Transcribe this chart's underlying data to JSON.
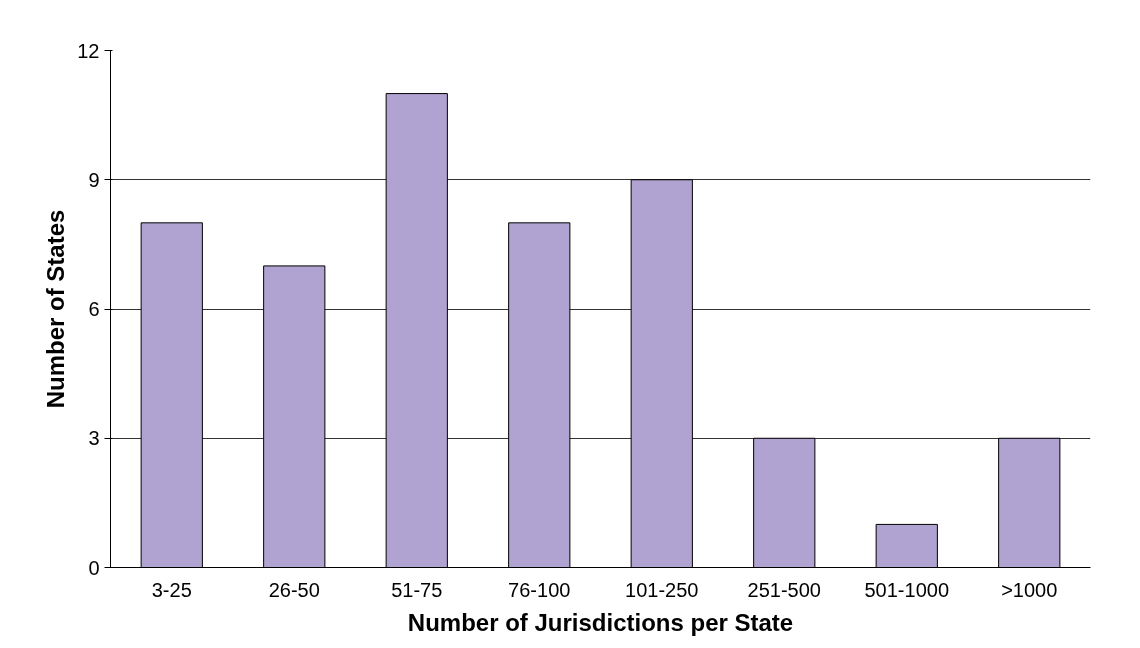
{
  "chart_data": {
    "type": "bar",
    "xlabel": "Number of Jurisdictions per State",
    "ylabel": "Number of States",
    "categories": [
      "3-25",
      "26-50",
      "51-75",
      "76-100",
      "101-250",
      "251-500",
      "501-1000",
      ">1000"
    ],
    "values": [
      8,
      7,
      11,
      8,
      9,
      3,
      1,
      3
    ],
    "color": "#b0a3d1",
    "ylim": [
      0,
      12
    ],
    "yticks": [
      0,
      3,
      6,
      9,
      12
    ],
    "grid": "y"
  }
}
